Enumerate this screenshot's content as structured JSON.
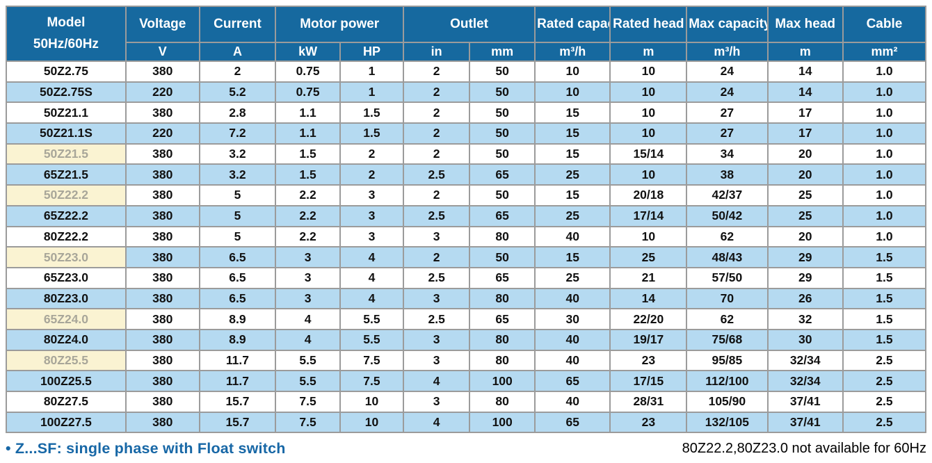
{
  "colors": {
    "header_blue": "#16699f",
    "row_blue": "#b5daf1",
    "highlight_yellow": "#faf3d2",
    "highlight_text": "#a8a699",
    "note_blue": "#1767a6",
    "grid_gray": "#9b9b9b"
  },
  "table": {
    "header": {
      "model_line1": "Model",
      "model_line2": "50Hz/60Hz",
      "groups": [
        {
          "label": "Voltage",
          "span": 1
        },
        {
          "label": "Current",
          "span": 1
        },
        {
          "label": "Motor power",
          "span": 2
        },
        {
          "label": "Outlet",
          "span": 2
        },
        {
          "label": "Rated capacity",
          "span": 1
        },
        {
          "label": "Rated head",
          "span": 1
        },
        {
          "label": "Max capacity",
          "span": 1
        },
        {
          "label": "Max head",
          "span": 1
        },
        {
          "label": "Cable",
          "span": 1
        }
      ],
      "units": [
        "V",
        "A",
        "kW",
        "HP",
        "in",
        "mm",
        "m³/h",
        "m",
        "m³/h",
        "m",
        "mm²"
      ]
    },
    "rows": [
      {
        "model": "50Z2.75",
        "model_highlight": false,
        "shade": false,
        "values": [
          "380",
          "2",
          "0.75",
          "1",
          "2",
          "50",
          "10",
          "10",
          "24",
          "14",
          "1.0"
        ]
      },
      {
        "model": "50Z2.75S",
        "model_highlight": false,
        "shade": true,
        "values": [
          "220",
          "5.2",
          "0.75",
          "1",
          "2",
          "50",
          "10",
          "10",
          "24",
          "14",
          "1.0"
        ]
      },
      {
        "model": "50Z21.1",
        "model_highlight": false,
        "shade": false,
        "values": [
          "380",
          "2.8",
          "1.1",
          "1.5",
          "2",
          "50",
          "15",
          "10",
          "27",
          "17",
          "1.0"
        ]
      },
      {
        "model": "50Z21.1S",
        "model_highlight": false,
        "shade": true,
        "values": [
          "220",
          "7.2",
          "1.1",
          "1.5",
          "2",
          "50",
          "15",
          "10",
          "27",
          "17",
          "1.0"
        ]
      },
      {
        "model": "50Z21.5",
        "model_highlight": true,
        "shade": false,
        "values": [
          "380",
          "3.2",
          "1.5",
          "2",
          "2",
          "50",
          "15",
          "15/14",
          "34",
          "20",
          "1.0"
        ]
      },
      {
        "model": "65Z21.5",
        "model_highlight": false,
        "shade": true,
        "values": [
          "380",
          "3.2",
          "1.5",
          "2",
          "2.5",
          "65",
          "25",
          "10",
          "38",
          "20",
          "1.0"
        ]
      },
      {
        "model": "50Z22.2",
        "model_highlight": true,
        "shade": false,
        "values": [
          "380",
          "5",
          "2.2",
          "3",
          "2",
          "50",
          "15",
          "20/18",
          "42/37",
          "25",
          "1.0"
        ]
      },
      {
        "model": "65Z22.2",
        "model_highlight": false,
        "shade": true,
        "values": [
          "380",
          "5",
          "2.2",
          "3",
          "2.5",
          "65",
          "25",
          "17/14",
          "50/42",
          "25",
          "1.0"
        ]
      },
      {
        "model": "80Z22.2",
        "model_highlight": false,
        "shade": false,
        "values": [
          "380",
          "5",
          "2.2",
          "3",
          "3",
          "80",
          "40",
          "10",
          "62",
          "20",
          "1.0"
        ]
      },
      {
        "model": "50Z23.0",
        "model_highlight": true,
        "shade": true,
        "values": [
          "380",
          "6.5",
          "3",
          "4",
          "2",
          "50",
          "15",
          "25",
          "48/43",
          "29",
          "1.5"
        ]
      },
      {
        "model": "65Z23.0",
        "model_highlight": false,
        "shade": false,
        "values": [
          "380",
          "6.5",
          "3",
          "4",
          "2.5",
          "65",
          "25",
          "21",
          "57/50",
          "29",
          "1.5"
        ]
      },
      {
        "model": "80Z23.0",
        "model_highlight": false,
        "shade": true,
        "values": [
          "380",
          "6.5",
          "3",
          "4",
          "3",
          "80",
          "40",
          "14",
          "70",
          "26",
          "1.5"
        ]
      },
      {
        "model": "65Z24.0",
        "model_highlight": true,
        "shade": false,
        "values": [
          "380",
          "8.9",
          "4",
          "5.5",
          "2.5",
          "65",
          "30",
          "22/20",
          "62",
          "32",
          "1.5"
        ]
      },
      {
        "model": "80Z24.0",
        "model_highlight": false,
        "shade": true,
        "values": [
          "380",
          "8.9",
          "4",
          "5.5",
          "3",
          "80",
          "40",
          "19/17",
          "75/68",
          "30",
          "1.5"
        ]
      },
      {
        "model": "80Z25.5",
        "model_highlight": true,
        "shade": false,
        "values": [
          "380",
          "11.7",
          "5.5",
          "7.5",
          "3",
          "80",
          "40",
          "23",
          "95/85",
          "32/34",
          "2.5"
        ]
      },
      {
        "model": "100Z25.5",
        "model_highlight": false,
        "shade": true,
        "values": [
          "380",
          "11.7",
          "5.5",
          "7.5",
          "4",
          "100",
          "65",
          "17/15",
          "112/100",
          "32/34",
          "2.5"
        ]
      },
      {
        "model": "80Z27.5",
        "model_highlight": false,
        "shade": false,
        "values": [
          "380",
          "15.7",
          "7.5",
          "10",
          "3",
          "80",
          "40",
          "28/31",
          "105/90",
          "37/41",
          "2.5"
        ]
      },
      {
        "model": "100Z27.5",
        "model_highlight": false,
        "shade": true,
        "values": [
          "380",
          "15.7",
          "7.5",
          "10",
          "4",
          "100",
          "65",
          "23",
          "132/105",
          "37/41",
          "2.5"
        ]
      }
    ]
  },
  "footer": {
    "left_note": "• Z...SF: single phase with Float switch",
    "right_note": "80Z22.2,80Z23.0 not available for 60Hz"
  }
}
